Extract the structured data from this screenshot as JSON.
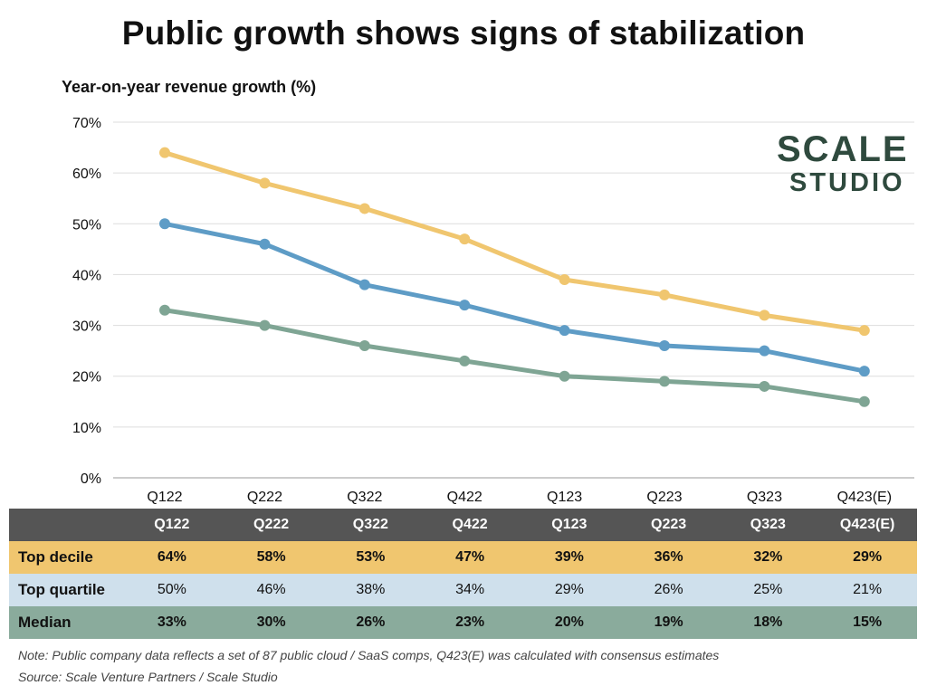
{
  "title": "Public growth shows signs of stabilization",
  "logo": {
    "line1": "SCALE",
    "line2": "STUDIO"
  },
  "chart_data": {
    "type": "line",
    "title": "Public growth shows signs of stabilization",
    "ylabel": "Year-on-year revenue growth (%)",
    "xlabel": "",
    "categories": [
      "Q122",
      "Q222",
      "Q322",
      "Q422",
      "Q123",
      "Q223",
      "Q323",
      "Q423(E)"
    ],
    "yticks": [
      "0%",
      "10%",
      "20%",
      "30%",
      "40%",
      "50%",
      "60%",
      "70%"
    ],
    "ylim": [
      0,
      70
    ],
    "grid": true,
    "series": [
      {
        "name": "Top decile",
        "color": "#f0c66f",
        "values": [
          64,
          58,
          53,
          47,
          39,
          36,
          32,
          29
        ]
      },
      {
        "name": "Top quartile",
        "color": "#5e9cc6",
        "values": [
          50,
          46,
          38,
          34,
          29,
          26,
          25,
          21
        ]
      },
      {
        "name": "Median",
        "color": "#7fa594",
        "values": [
          33,
          30,
          26,
          23,
          20,
          19,
          18,
          15
        ]
      }
    ]
  },
  "table": {
    "header": [
      "Q122",
      "Q222",
      "Q322",
      "Q422",
      "Q123",
      "Q223",
      "Q323",
      "Q423(E)"
    ],
    "rows": [
      {
        "label": "Top decile",
        "cells": [
          "64%",
          "58%",
          "53%",
          "47%",
          "39%",
          "36%",
          "32%",
          "29%"
        ]
      },
      {
        "label": "Top quartile",
        "cells": [
          "50%",
          "46%",
          "38%",
          "34%",
          "29%",
          "26%",
          "25%",
          "21%"
        ]
      },
      {
        "label": "Median",
        "cells": [
          "33%",
          "30%",
          "26%",
          "23%",
          "20%",
          "19%",
          "18%",
          "15%"
        ]
      }
    ]
  },
  "note": "Note: Public company data reflects a set of 87 public cloud / SaaS comps, Q423(E) was calculated with consensus estimates",
  "source": "Source: Scale Venture Partners / Scale Studio"
}
